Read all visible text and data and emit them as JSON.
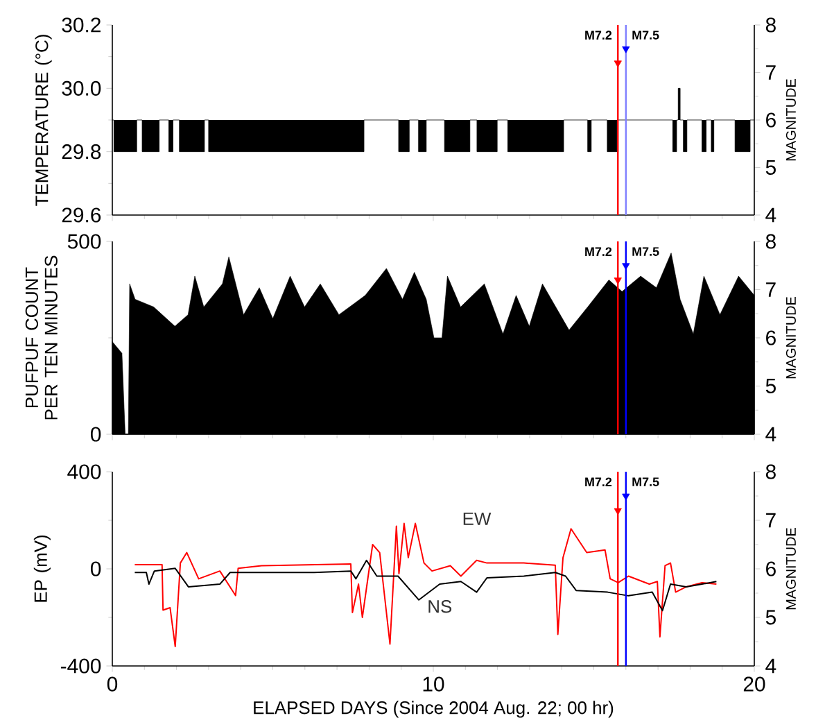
{
  "chart_data": [
    {
      "type": "step",
      "ylabel": "TEMPERATURE (°C)",
      "y2label": "MAGNITUDE",
      "xlim": [
        0,
        20
      ],
      "xticks": [
        0,
        10,
        20
      ],
      "ylim": [
        29.6,
        30.2
      ],
      "yticks": [
        {
          "value": 29.6,
          "label": "29.6"
        },
        {
          "value": 29.8,
          "label": "29.8"
        },
        {
          "value": 30.0,
          "label": "30.0"
        },
        {
          "value": 30.2,
          "label": "30.2"
        }
      ],
      "y2lim": [
        4,
        8
      ],
      "y2ticks": [
        4,
        5,
        6,
        7,
        8
      ],
      "tick_labels": "y",
      "series": [
        {
          "color": "#000000",
          "x": [
            0,
            0.05,
            0.76,
            0.93,
            1.46,
            1.76,
            1.89,
            2.09,
            2.87,
            3.0,
            7.84,
            8.92,
            9.25,
            9.54,
            9.78,
            10.35,
            11.14,
            11.36,
            11.99,
            12.32,
            14.06,
            14.81,
            14.92,
            15.42,
            15.72,
            17.46,
            17.58,
            17.63,
            17.69,
            17.79,
            17.9,
            18.37,
            18.5,
            18.66,
            18.74,
            19.4,
            19.87,
            20
          ],
          "values": [
            29.9,
            29.8,
            29.9,
            29.8,
            29.9,
            29.8,
            29.9,
            29.8,
            29.9,
            29.8,
            29.9,
            29.8,
            29.9,
            29.8,
            29.9,
            29.8,
            29.9,
            29.8,
            29.9,
            29.8,
            29.9,
            29.8,
            29.9,
            29.8,
            29.9,
            29.8,
            29.9,
            30.0,
            29.9,
            29.8,
            29.9,
            29.8,
            29.9,
            29.8,
            29.9,
            29.8,
            29.9,
            29.9
          ]
        },
        {
          "type": "scatter",
          "axis": "y2",
          "marker": "triangle",
          "color": "#ff0000",
          "x": [
            15.75
          ],
          "values": [
            7.2
          ]
        },
        {
          "type": "scatter",
          "axis": "y2",
          "marker": "triangle",
          "color": "#0000ff",
          "x": [
            16.0
          ],
          "values": [
            7.5
          ]
        }
      ],
      "ref_lines": [
        {
          "axis": "x",
          "value": 15.75,
          "label": "M7.2",
          "color": "#ff0000"
        },
        {
          "axis": "x",
          "value": 16.0,
          "label": "M7.5",
          "color": "#8080ff"
        }
      ]
    },
    {
      "type": "area",
      "ylabel": "PUFPUF COUNT PER TEN MINUTES",
      "y2label": "MAGNITUDE",
      "xlim": [
        0,
        20
      ],
      "xticks": [
        0,
        10,
        20
      ],
      "ylim": [
        0,
        500
      ],
      "yticks": [
        0,
        500
      ],
      "y2lim": [
        4,
        8
      ],
      "y2ticks": [
        4,
        5,
        6,
        7,
        8
      ],
      "tick_labels": "y",
      "series": [
        {
          "color": "#000000",
          "x": [
            0,
            0.3,
            0.4,
            0.5,
            0.54,
            0.71,
            1.29,
            1.95,
            2.36,
            2.57,
            2.85,
            3.43,
            3.63,
            4.09,
            4.58,
            5.0,
            5.54,
            5.99,
            6.48,
            7.06,
            7.88,
            8.54,
            9.04,
            9.41,
            9.78,
            10.02,
            10.27,
            10.44,
            10.85,
            11.59,
            12.17,
            12.58,
            12.99,
            13.4,
            14.23,
            14.81,
            15.47,
            15.88,
            16.46,
            16.95,
            17.41,
            17.69,
            18.1,
            18.43,
            18.93,
            19.51,
            20
          ],
          "values": [
            240,
            210,
            0,
            0,
            390,
            350,
            330,
            280,
            310,
            410,
            330,
            390,
            460,
            310,
            380,
            300,
            410,
            330,
            390,
            310,
            360,
            430,
            350,
            420,
            350,
            250,
            250,
            410,
            330,
            390,
            260,
            360,
            280,
            390,
            270,
            330,
            400,
            370,
            410,
            380,
            470,
            350,
            260,
            410,
            310,
            410,
            360
          ]
        },
        {
          "type": "scatter",
          "axis": "y2",
          "marker": "triangle",
          "color": "#ff0000",
          "x": [
            15.75
          ],
          "values": [
            7.2
          ]
        },
        {
          "type": "scatter",
          "axis": "y2",
          "marker": "triangle",
          "color": "#0000ff",
          "x": [
            16.0
          ],
          "values": [
            7.5
          ]
        }
      ],
      "ref_lines": [
        {
          "axis": "x",
          "value": 15.75,
          "label": "M7.2",
          "color": "#ff0000"
        },
        {
          "axis": "x",
          "value": 16.0,
          "label": "M7.5",
          "color": "#0000ff"
        }
      ]
    },
    {
      "type": "line",
      "ylabel": "EP (mV)",
      "y2label": "MAGNITUDE",
      "xlabel": "ELAPSED DAYS (Since 2004 Aug. 22; 00 hr)",
      "xlim": [
        0,
        20
      ],
      "xticks": [
        0,
        10,
        20
      ],
      "ylim": [
        -400,
        400
      ],
      "yticks": [
        -400,
        0,
        400
      ],
      "y2lim": [
        4,
        8
      ],
      "y2ticks": [
        4,
        5,
        6,
        7,
        8
      ],
      "series": [
        {
          "name": "EW",
          "color": "#ff0000",
          "x": [
            0.7,
            1.55,
            1.58,
            1.8,
            1.96,
            2.12,
            2.32,
            2.69,
            3.35,
            3.84,
            3.92,
            4.65,
            7.43,
            7.48,
            7.67,
            7.79,
            8.11,
            8.33,
            8.65,
            8.85,
            8.93,
            9.09,
            9.22,
            9.44,
            9.71,
            9.96,
            10.53,
            10.86,
            11.35,
            11.67,
            12.82,
            13.8,
            13.88,
            14.04,
            14.29,
            14.78,
            15.35,
            15.51,
            15.76,
            16.08,
            16.73,
            16.98,
            17.06,
            17.22,
            17.39,
            17.55,
            17.88,
            18.37,
            18.82
          ],
          "values": [
            17,
            17,
            -170,
            -160,
            -320,
            24,
            67,
            -41,
            -9,
            -110,
            2,
            13,
            20,
            -180,
            -63,
            -200,
            100,
            67,
            -310,
            176,
            -20,
            187,
            46,
            187,
            24,
            -9,
            13,
            -30,
            35,
            24,
            24,
            15,
            -270,
            46,
            165,
            67,
            78,
            -41,
            -57,
            -30,
            -63,
            -52,
            -280,
            13,
            24,
            -96,
            -74,
            -57,
            -63
          ]
        },
        {
          "name": "NS",
          "color": "#000000",
          "x": [
            0.7,
            1.06,
            1.14,
            1.31,
            1.96,
            2.37,
            3.35,
            3.67,
            6.29,
            7.43,
            7.59,
            7.92,
            8.24,
            8.9,
            9.55,
            10.2,
            10.86,
            11.35,
            11.67,
            12.82,
            13.8,
            14.12,
            14.45,
            15.43,
            16.08,
            16.82,
            17.14,
            17.39,
            17.88,
            18.37,
            18.82
          ],
          "values": [
            -15,
            -15,
            -63,
            -9,
            2,
            -74,
            -63,
            -15,
            -15,
            -9,
            -41,
            35,
            -30,
            -30,
            -128,
            -63,
            -52,
            -96,
            -37,
            -30,
            -15,
            -30,
            -89,
            -96,
            -111,
            -96,
            -172,
            -63,
            -74,
            -63,
            -52
          ]
        },
        {
          "type": "scatter",
          "axis": "y2",
          "marker": "triangle",
          "color": "#ff0000",
          "x": [
            15.75
          ],
          "values": [
            7.2
          ]
        },
        {
          "type": "scatter",
          "axis": "y2",
          "marker": "triangle",
          "color": "#0000ff",
          "x": [
            16.0
          ],
          "values": [
            7.5
          ]
        }
      ],
      "ref_lines": [
        {
          "axis": "x",
          "value": 15.75,
          "label": "M7.2",
          "color": "#ff0000"
        },
        {
          "axis": "x",
          "value": 16.0,
          "label": "M7.5",
          "color": "#0000ff"
        }
      ]
    }
  ]
}
